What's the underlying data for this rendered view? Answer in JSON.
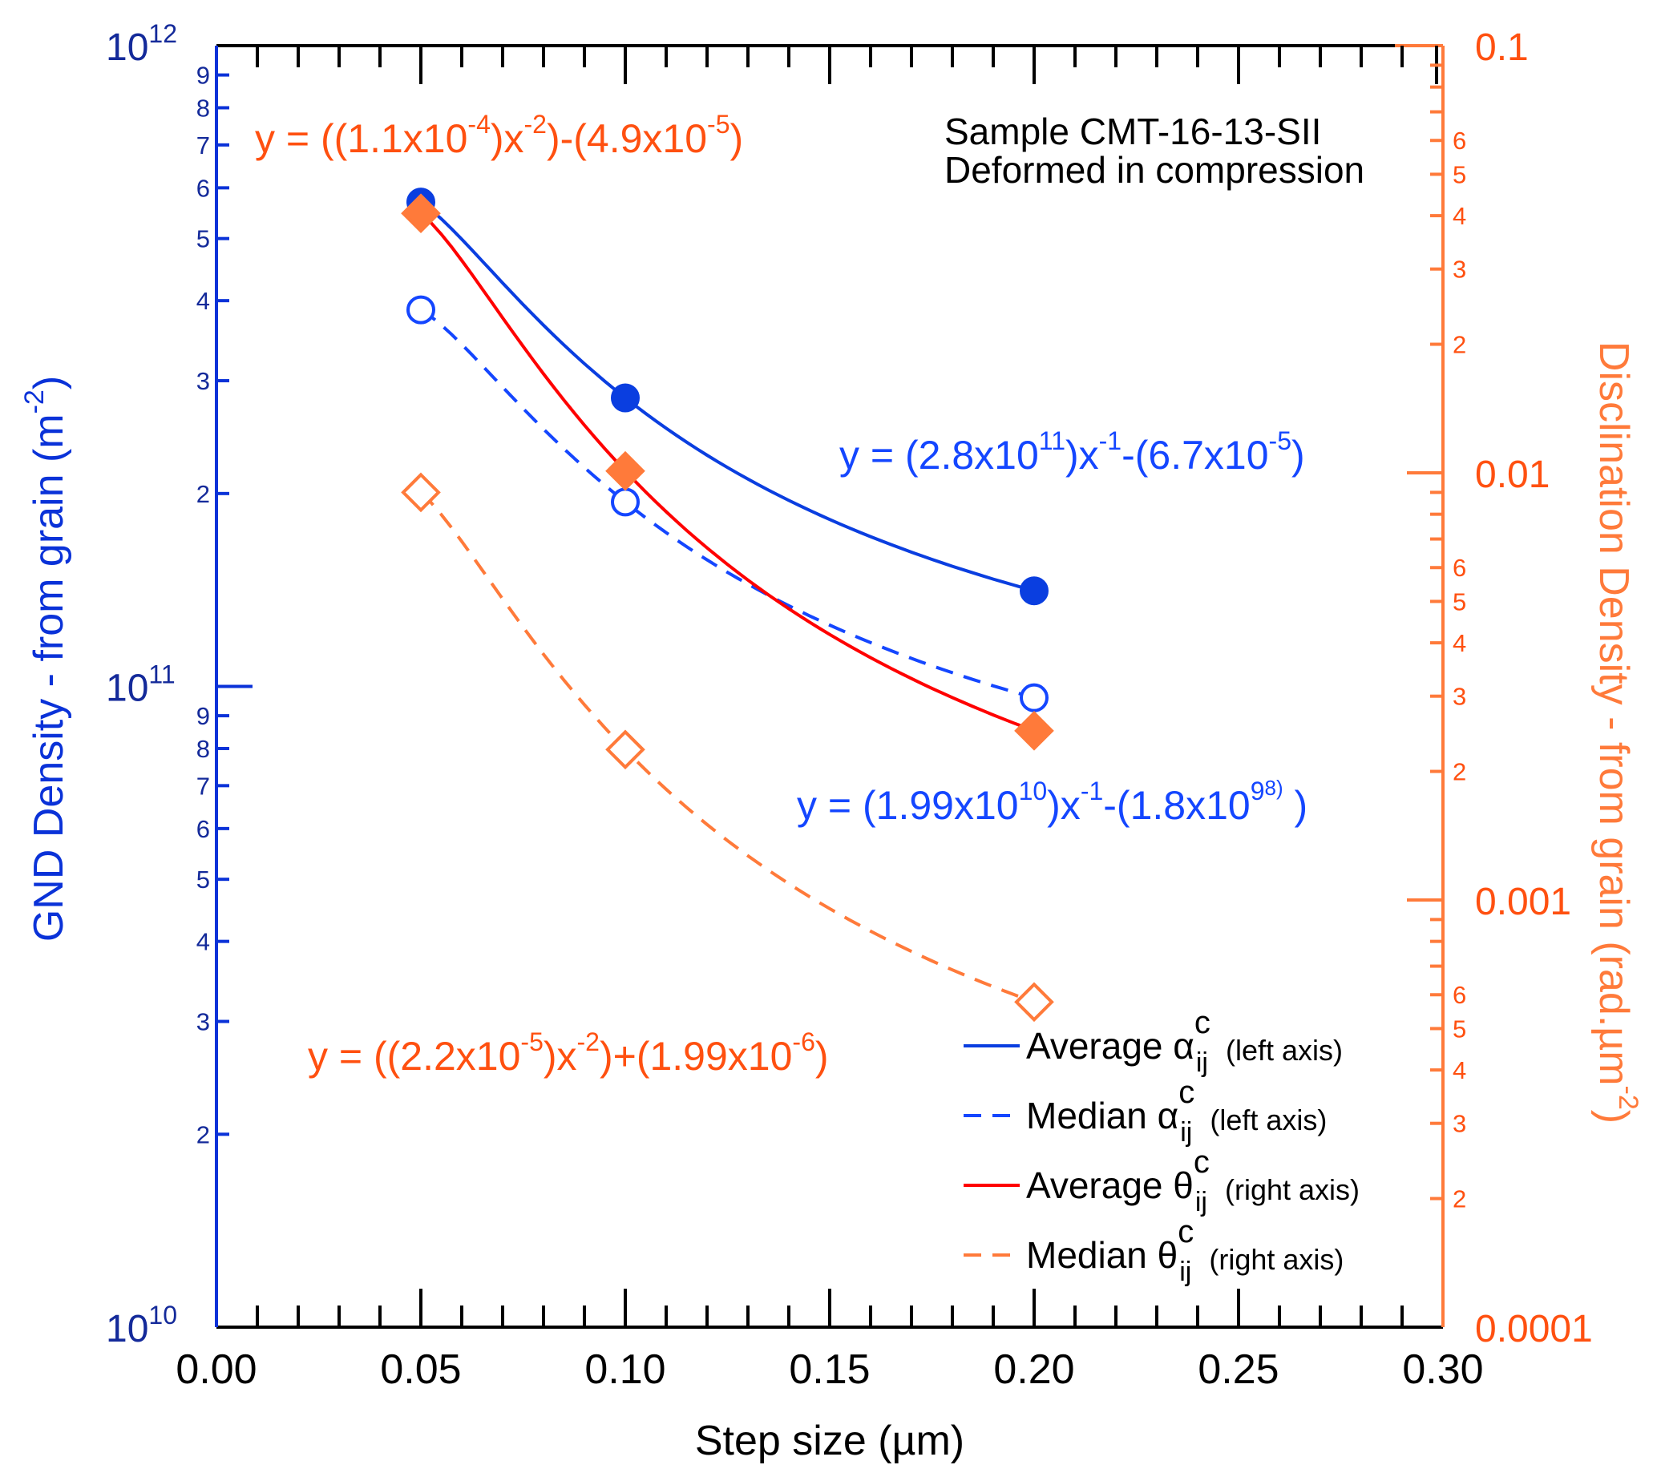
{
  "chart_data": {
    "type": "scatter",
    "colors": {
      "left_axis": "#0a32d8",
      "left_labels": "#142a9a",
      "right_axis": "#ff7a3a",
      "right_labels": "#ff5010",
      "avg_alpha": "#0a3ee0",
      "med_alpha": "#1446ff",
      "avg_theta": "#ff0000",
      "theta_marker": "#ff7a3a",
      "text": "#000000"
    },
    "x_axis": {
      "label": "Step size (µm)",
      "range": [
        0,
        0.3
      ],
      "ticks": [
        "0.00",
        "0.05",
        "0.10",
        "0.15",
        "0.20",
        "0.25",
        "0.30"
      ],
      "tick_values": [
        0,
        0.05,
        0.1,
        0.15,
        0.2,
        0.25,
        0.3
      ]
    },
    "left_axis": {
      "label_main": "GND Density -  from grain (m",
      "label_sup": "-2",
      "label_end": ")",
      "scale": "log",
      "range": [
        10000000000.0,
        1000000000000.0
      ],
      "decades": [
        {
          "base": "10",
          "exp": "10"
        },
        {
          "base": "10",
          "exp": "11"
        },
        {
          "base": "10",
          "exp": "12"
        }
      ],
      "minor_labels": [
        "2",
        "3",
        "4",
        "5",
        "6",
        "7",
        "8",
        "9"
      ]
    },
    "right_axis": {
      "label_main": "Disclination Density - from grain (rad.µm",
      "label_sup": "-2",
      "label_end": ")",
      "scale": "log",
      "range": [
        0.0001,
        0.1
      ],
      "decades": [
        "0.0001",
        "0.001",
        "0.01",
        "0.1"
      ],
      "minor_labels": [
        "2",
        "3",
        "4",
        "5",
        "6"
      ]
    },
    "series": [
      {
        "name": "Average α",
        "axis": "left",
        "style": "solid",
        "marker": "filled-circle",
        "x": [
          0.05,
          0.1,
          0.2
        ],
        "y": [
          570000000000.0,
          282000000000.0,
          141000000000.0
        ]
      },
      {
        "name": "Median α",
        "axis": "left",
        "style": "dashed",
        "marker": "open-circle",
        "x": [
          0.05,
          0.1,
          0.2
        ],
        "y": [
          387000000000.0,
          194000000000.0,
          96000000000.0
        ]
      },
      {
        "name": "Average θ",
        "axis": "right",
        "style": "solid",
        "marker": "filled-diamond",
        "x": [
          0.05,
          0.1,
          0.2
        ],
        "y": [
          0.0405,
          0.0101,
          0.00249
        ]
      },
      {
        "name": "Median θ",
        "axis": "right",
        "style": "dashed",
        "marker": "open-diamond",
        "x": [
          0.05,
          0.1,
          0.2
        ],
        "y": [
          0.009,
          0.00225,
          0.000577
        ]
      }
    ],
    "equations": [
      {
        "color": "orange",
        "parts": [
          [
            "y = ((1.1x10",
            ""
          ],
          [
            "-4",
            "sup"
          ],
          [
            ")x",
            ""
          ],
          [
            "-2",
            "sup"
          ],
          [
            ")-(4.9x10",
            ""
          ],
          [
            "-5",
            "sup"
          ],
          [
            ")",
            ""
          ]
        ]
      },
      {
        "color": "blue",
        "parts": [
          [
            "y = (2.8x10",
            ""
          ],
          [
            "11",
            "sup"
          ],
          [
            ")x",
            ""
          ],
          [
            "-1",
            "sup"
          ],
          [
            "-(6.7x10",
            ""
          ],
          [
            "-5",
            "sup"
          ],
          [
            ")",
            ""
          ]
        ]
      },
      {
        "color": "blue",
        "parts": [
          [
            "y = (1.99x10",
            ""
          ],
          [
            "10",
            "sup"
          ],
          [
            ")x",
            ""
          ],
          [
            "-1",
            "sup"
          ],
          [
            "-(1.8x10",
            ""
          ],
          [
            "9",
            "sup"
          ],
          [
            "8)",
            "sup2"
          ],
          [
            " )",
            ""
          ]
        ]
      },
      {
        "color": "orange",
        "parts": [
          [
            "y = ((2.2x10",
            ""
          ],
          [
            "-5",
            "sup"
          ],
          [
            ")x",
            ""
          ],
          [
            "-2",
            "sup"
          ],
          [
            ")+(1.99x10",
            ""
          ],
          [
            "-6",
            "sup"
          ],
          [
            ")",
            ""
          ]
        ]
      }
    ],
    "annotation": [
      "Sample CMT-16-13-SII",
      "Deformed in compression"
    ],
    "legend": [
      {
        "label": "Average α",
        "sup": "c",
        "sub": "ij",
        "note": "(left axis)"
      },
      {
        "label": "Median α",
        "sup": "c",
        "sub": "ij",
        "note": "(left axis)"
      },
      {
        "label": "Average θ",
        "sup": "c",
        "sub": "ij",
        "note": "(right axis)"
      },
      {
        "label": "Median θ",
        "sup": "c",
        "sub": "ij",
        "note": "(right axis)"
      }
    ],
    "legend_placement": "bottom-right"
  }
}
